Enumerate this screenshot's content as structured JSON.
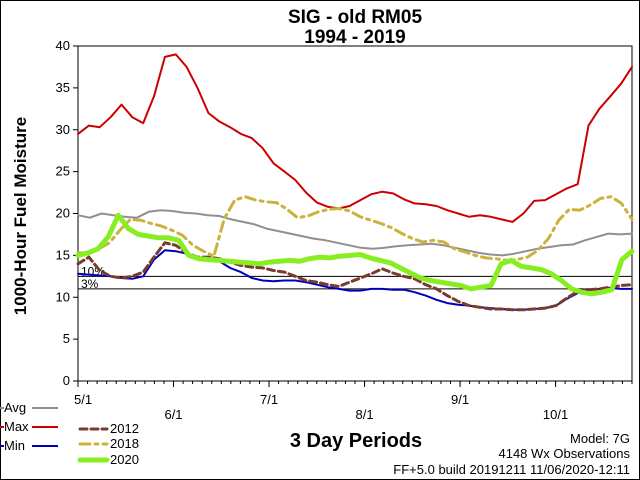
{
  "chart_data": {
    "type": "line",
    "title": "SIG - old RM05",
    "subtitle": "1994 - 2019",
    "xlabel": "3 Day Periods",
    "ylabel": "1000-Hour Fuel Moisture",
    "ylim": [
      0,
      40
    ],
    "yticks": [
      "0",
      "5",
      "10",
      "15",
      "20",
      "25",
      "30",
      "35",
      "40"
    ],
    "x_ticks": [
      "5/1",
      "6/1",
      "7/1",
      "8/1",
      "9/1",
      "10/1"
    ],
    "grid": false,
    "legend_position": "bottom",
    "percentile_lines": [
      {
        "label": "10%",
        "value": 12.5
      },
      {
        "label": "3%",
        "value": 11.0
      }
    ],
    "series": [
      {
        "name": "Avg",
        "color": "#909090",
        "style": "solid",
        "values": [
          19.8,
          19.5,
          20.0,
          19.8,
          19.6,
          19.5,
          20.2,
          20.4,
          20.3,
          20.1,
          20.0,
          19.8,
          19.7,
          19.3,
          19.0,
          18.7,
          18.2,
          17.9,
          17.6,
          17.3,
          17.0,
          16.8,
          16.5,
          16.2,
          15.9,
          15.8,
          15.9,
          16.1,
          16.2,
          16.3,
          16.4,
          16.2,
          15.9,
          15.6,
          15.3,
          15.1,
          15.0,
          15.2,
          15.5,
          15.8,
          16.0,
          16.2,
          16.3,
          16.8,
          17.2,
          17.6,
          17.5,
          17.6
        ]
      },
      {
        "name": "Max",
        "color": "#cc0000",
        "style": "solid",
        "values": [
          29.5,
          30.5,
          30.3,
          31.5,
          33.0,
          31.5,
          30.8,
          34.0,
          38.7,
          39.0,
          37.5,
          35.0,
          32.0,
          31.0,
          30.3,
          29.5,
          29.0,
          27.8,
          26.0,
          25.0,
          24.0,
          22.5,
          21.3,
          20.8,
          20.6,
          20.9,
          21.6,
          22.3,
          22.6,
          22.4,
          21.7,
          21.2,
          21.1,
          20.9,
          20.4,
          20.0,
          19.6,
          19.8,
          19.6,
          19.3,
          19.0,
          20.0,
          21.5,
          21.6,
          22.3,
          23.0,
          23.5,
          30.5,
          32.5,
          34.0,
          35.5,
          37.5
        ]
      },
      {
        "name": "Min",
        "color": "#0000bb",
        "style": "solid",
        "values": [
          12.8,
          12.7,
          12.6,
          12.5,
          12.3,
          12.2,
          12.5,
          14.5,
          15.6,
          15.5,
          15.2,
          14.7,
          14.5,
          14.3,
          13.5,
          13.0,
          12.3,
          12.0,
          11.9,
          12.0,
          12.0,
          11.8,
          11.5,
          11.2,
          11.0,
          10.8,
          10.8,
          11.0,
          11.0,
          10.9,
          10.9,
          10.6,
          10.2,
          9.7,
          9.3,
          9.1,
          9.0,
          8.8,
          8.7,
          8.6,
          8.5,
          8.5,
          8.6,
          8.7,
          9.0,
          9.8,
          10.5,
          10.9,
          11.0,
          11.1,
          11.0,
          11.0
        ]
      },
      {
        "name": "2012",
        "color": "#7a3b2e",
        "style": "dash",
        "values": [
          14.0,
          14.8,
          13.2,
          12.5,
          12.3,
          12.5,
          13.0,
          14.8,
          16.5,
          16.2,
          15.3,
          14.8,
          14.8,
          14.6,
          14.2,
          13.8,
          13.6,
          13.5,
          13.2,
          13.0,
          12.5,
          12.0,
          11.8,
          11.5,
          11.3,
          11.8,
          12.3,
          12.8,
          13.4,
          12.9,
          12.5,
          12.2,
          11.5,
          11.0,
          10.2,
          9.5,
          9.0,
          8.8,
          8.6,
          8.6,
          8.5,
          8.5,
          8.6,
          8.7,
          9.0,
          9.9,
          10.7,
          10.9,
          11.0,
          11.2,
          11.4,
          11.5
        ]
      },
      {
        "name": "2018",
        "color": "#ccb23c",
        "style": "dashdot",
        "values": [
          15.3,
          15.3,
          15.8,
          16.5,
          18.0,
          19.3,
          19.2,
          18.8,
          18.5,
          18.0,
          17.4,
          16.2,
          15.5,
          14.9,
          19.4,
          21.6,
          22.0,
          21.6,
          21.4,
          21.3,
          20.5,
          19.5,
          19.7,
          20.2,
          20.5,
          20.6,
          20.3,
          19.6,
          19.2,
          18.8,
          18.3,
          17.6,
          17.0,
          16.6,
          16.8,
          16.6,
          15.8,
          15.4,
          15.0,
          14.7,
          14.6,
          14.4,
          14.5,
          14.8,
          15.6,
          17.0,
          19.2,
          20.5,
          20.4,
          21.0,
          21.8,
          22.0,
          21.2,
          19.3
        ]
      },
      {
        "name": "2020",
        "color": "#88ee22",
        "style": "solid-thick",
        "values": [
          15.0,
          15.3,
          15.8,
          17.2,
          19.8,
          18.2,
          17.5,
          17.3,
          17.1,
          17.1,
          16.8,
          15.0,
          14.6,
          14.5,
          14.4,
          14.3,
          14.2,
          14.1,
          14.0,
          14.2,
          14.3,
          14.4,
          14.3,
          14.6,
          14.8,
          14.7,
          14.9,
          15.0,
          15.1,
          14.7,
          14.4,
          14.1,
          13.5,
          12.9,
          12.3,
          12.0,
          11.8,
          11.6,
          11.4,
          11.0,
          11.2,
          11.4,
          14.0,
          14.4,
          13.7,
          13.5,
          13.3,
          12.8,
          12.0,
          11.0,
          10.6,
          10.4,
          10.6,
          10.9,
          14.5,
          15.5
        ]
      }
    ]
  },
  "info": {
    "model": "Model: 7G",
    "observations": "4148 Wx Observations",
    "build": "FF+5.0 build 20191211 11/06/2020-12:11"
  }
}
